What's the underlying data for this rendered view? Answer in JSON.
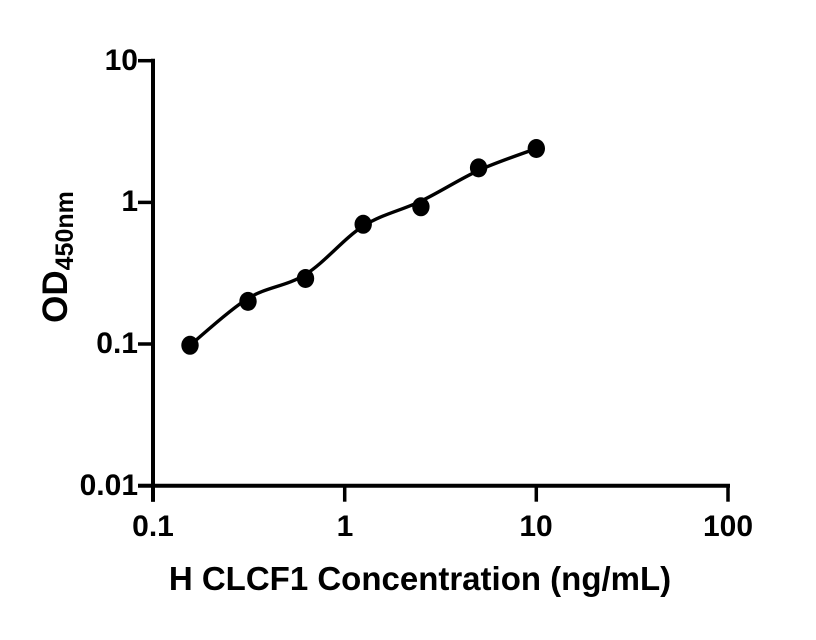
{
  "figure": {
    "background": "#ffffff",
    "foreground": "#000000"
  },
  "chart_data": {
    "type": "scatter",
    "title": "",
    "xlabel": "H CLCF1 Concentration (ng/mL)",
    "ylabel": "OD",
    "ylabel_subscript": "450nm",
    "xscale": "log",
    "yscale": "log",
    "xlim": [
      0.1,
      100
    ],
    "ylim": [
      0.01,
      10
    ],
    "x_ticks": [
      0.1,
      1,
      10,
      100
    ],
    "x_tick_labels": [
      "0.1",
      "1",
      "10",
      "100"
    ],
    "y_ticks": [
      10,
      1,
      0.1,
      0.01
    ],
    "y_tick_labels": [
      "10",
      "1",
      "0.1",
      "0.01"
    ],
    "grid": false,
    "legend": false,
    "marker": "filled-circle",
    "marker_color": "#000000",
    "line_color": "#000000",
    "series": [
      {
        "name": "standard-data-points",
        "type": "scatter",
        "x": [
          0.156,
          0.313,
          0.625,
          1.25,
          2.5,
          5,
          10
        ],
        "y": [
          0.098,
          0.2,
          0.29,
          0.7,
          0.93,
          1.75,
          2.4
        ]
      },
      {
        "name": "fitted-standard-curve",
        "type": "line",
        "x": [
          0.156,
          0.313,
          0.625,
          1.25,
          2.5,
          5,
          10
        ],
        "y": [
          0.098,
          0.21,
          0.31,
          0.68,
          1.02,
          1.68,
          2.4
        ]
      }
    ]
  }
}
